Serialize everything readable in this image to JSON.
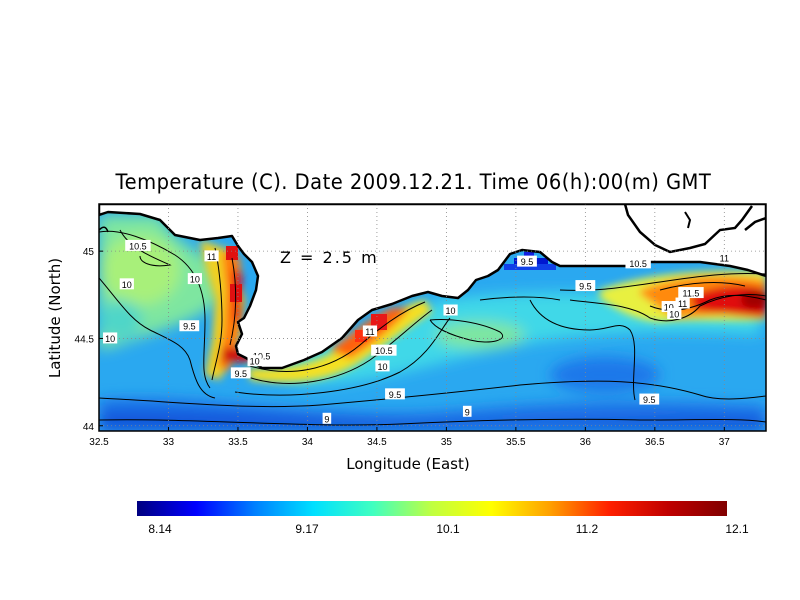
{
  "title": "Temperature (C). Date 2009.12.21. Time 06(h):00(m) GMT",
  "depth_label": "Z = 2.5 m",
  "axes": {
    "xlabel": "Longitude (East)",
    "ylabel": "Latitude (North)",
    "xticks": [
      "32.5",
      "33",
      "33.5",
      "34",
      "34.5",
      "35",
      "35.5",
      "36",
      "36.5",
      "37"
    ],
    "xtick_values": [
      32.5,
      33,
      33.5,
      34,
      34.5,
      35,
      35.5,
      36,
      36.5,
      37
    ],
    "yticks": [
      "44",
      "44.5",
      "45"
    ],
    "ytick_values": [
      44,
      44.5,
      45
    ],
    "xlim": [
      32.5,
      37.3
    ],
    "ylim": [
      43.97,
      45.27
    ]
  },
  "contour_labels": [
    {
      "text": "10.5",
      "lon": 32.78,
      "lat": 45.03
    },
    {
      "text": "11",
      "lon": 33.31,
      "lat": 44.97
    },
    {
      "text": "10",
      "lon": 32.7,
      "lat": 44.81
    },
    {
      "text": "10",
      "lon": 33.19,
      "lat": 44.84
    },
    {
      "text": "9.5",
      "lon": 33.15,
      "lat": 44.57
    },
    {
      "text": "10",
      "lon": 32.58,
      "lat": 44.5
    },
    {
      "text": "10.5",
      "lon": 33.67,
      "lat": 44.4
    },
    {
      "text": "10",
      "lon": 33.62,
      "lat": 44.37
    },
    {
      "text": "9.5",
      "lon": 33.52,
      "lat": 44.3
    },
    {
      "text": "11",
      "lon": 34.45,
      "lat": 44.54
    },
    {
      "text": "10.5",
      "lon": 34.55,
      "lat": 44.43
    },
    {
      "text": "10",
      "lon": 34.54,
      "lat": 44.34
    },
    {
      "text": "10",
      "lon": 35.03,
      "lat": 44.66
    },
    {
      "text": "9.5",
      "lon": 34.63,
      "lat": 44.18
    },
    {
      "text": "9",
      "lon": 34.14,
      "lat": 44.04
    },
    {
      "text": "9",
      "lon": 35.15,
      "lat": 44.08
    },
    {
      "text": "9.5",
      "lon": 35.58,
      "lat": 44.94
    },
    {
      "text": "9.5",
      "lon": 36.0,
      "lat": 44.8
    },
    {
      "text": "10.5",
      "lon": 36.38,
      "lat": 44.93
    },
    {
      "text": "11",
      "lon": 37.0,
      "lat": 44.96
    },
    {
      "text": "11.5",
      "lon": 36.76,
      "lat": 44.76
    },
    {
      "text": "11",
      "lon": 36.7,
      "lat": 44.7
    },
    {
      "text": "10",
      "lon": 36.6,
      "lat": 44.68
    },
    {
      "text": "10",
      "lon": 36.64,
      "lat": 44.64
    },
    {
      "text": "9.5",
      "lon": 36.46,
      "lat": 44.15
    }
  ],
  "colorbar": {
    "ticks": [
      "8.14",
      "9.17",
      "10.1",
      "11.2",
      "12.1"
    ],
    "min": 8.14,
    "max": 12.1,
    "colors": [
      "#000080",
      "#0000ff",
      "#0080ff",
      "#00e0ff",
      "#40ffc0",
      "#c0ff40",
      "#ffff00",
      "#ffa000",
      "#ff2000",
      "#c00000",
      "#800000"
    ]
  },
  "colors": {
    "land": "#ffffff",
    "coast": "#000000",
    "grid": "#888888"
  }
}
